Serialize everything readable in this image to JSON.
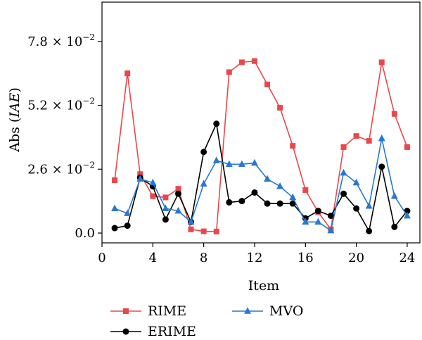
{
  "chart_data": {
    "type": "line",
    "xlabel": "Item",
    "ylabel_prefix": "Abs (",
    "ylabel_italic": "IAE",
    "ylabel_suffix": ")",
    "xlim": [
      0,
      25
    ],
    "ylim": [
      -0.004,
      0.094
    ],
    "xticks": [
      0,
      4,
      8,
      12,
      16,
      20,
      24
    ],
    "xtick_labels": [
      "0",
      "4",
      "8",
      "12",
      "16",
      "20",
      "24"
    ],
    "yticks": [
      0,
      0.026,
      0.052,
      0.078
    ],
    "ytick_labels": [
      {
        "mant": "0.0",
        "exp": ""
      },
      {
        "mant": "2.6 × 10",
        "exp": "−2"
      },
      {
        "mant": "5.2 × 10",
        "exp": "−2"
      },
      {
        "mant": "7.8 × 10",
        "exp": "−2"
      }
    ],
    "grid": false,
    "legend_placement": "below plot",
    "x": [
      1,
      2,
      3,
      4,
      5,
      6,
      7,
      8,
      9,
      10,
      11,
      12,
      13,
      14,
      15,
      16,
      17,
      18,
      19,
      20,
      21,
      22,
      23,
      24
    ],
    "series": [
      {
        "name": "RIME",
        "color": "#e8474c",
        "marker": "square",
        "values": [
          0.0215,
          0.065,
          0.024,
          0.015,
          0.0145,
          0.018,
          0.0015,
          0.0007,
          0.0006,
          0.0655,
          0.0695,
          0.07,
          0.0605,
          0.051,
          0.0355,
          0.0175,
          0.0085,
          0.0015,
          0.035,
          0.0395,
          0.0375,
          0.0695,
          0.0485,
          0.035
        ]
      },
      {
        "name": "ERIME",
        "color": "#000000",
        "marker": "circle",
        "values": [
          0.002,
          0.003,
          0.0225,
          0.019,
          0.0055,
          0.016,
          0.0045,
          0.033,
          0.0445,
          0.0125,
          0.013,
          0.0165,
          0.012,
          0.012,
          0.012,
          0.006,
          0.009,
          0.007,
          0.016,
          0.01,
          0.0008,
          0.027,
          0.0025,
          0.009
        ]
      },
      {
        "name": "MVO",
        "color": "#2878d0",
        "marker": "triangle",
        "values": [
          0.01,
          0.008,
          0.022,
          0.0205,
          0.01,
          0.009,
          0.0045,
          0.02,
          0.0295,
          0.028,
          0.028,
          0.0285,
          0.022,
          0.019,
          0.0145,
          0.0045,
          0.0045,
          0.001,
          0.0245,
          0.0205,
          0.011,
          0.0385,
          0.015,
          0.007
        ]
      }
    ]
  }
}
